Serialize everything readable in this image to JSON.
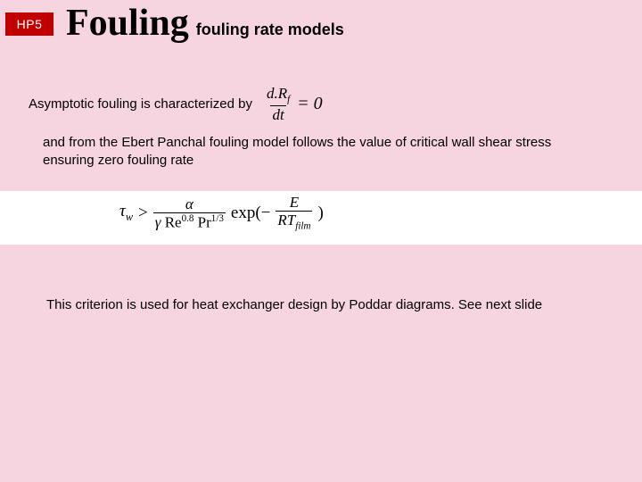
{
  "badge": "HP5",
  "title": {
    "main": "Fouling",
    "sub": "fouling rate models"
  },
  "line1": {
    "text": "Asymptotic fouling is characterized by",
    "eq": {
      "num_prefix": "d.R",
      "num_sub": "f",
      "den": "dt",
      "rhs": "= 0"
    }
  },
  "line2": "and from the Ebert Panchal fouling model follows the value of critical wall shear stress ensuring zero fouling rate",
  "eq2": {
    "tau": "τ",
    "tau_sub": "w",
    "gt": ">",
    "frac1_num": "α",
    "frac1_den_prefix": "γ ",
    "re": "Re",
    "re_sup": "0.8",
    "pr": "Pr",
    "pr_sup": "1/3",
    "exp": "exp(−",
    "frac2_num": "E",
    "frac2_den_prefix": "RT",
    "frac2_den_sub": "film",
    "close": ")"
  },
  "line3": "This criterion is used for heat exchanger design by Poddar diagrams. See next slide",
  "colors": {
    "bg": "#f7d5e0",
    "badge": "#c00000",
    "eq_bg": "#ffffff"
  }
}
